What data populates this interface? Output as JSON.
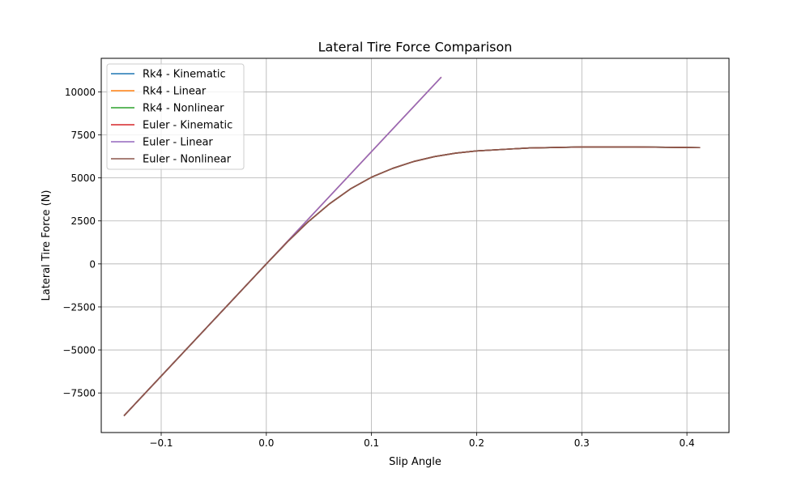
{
  "chart_data": {
    "type": "line",
    "title": "Lateral Tire Force Comparison",
    "xlabel": "Slip Angle",
    "ylabel": "Lateral Tire Force (N)",
    "xlim": [
      -0.157,
      0.44
    ],
    "ylim": [
      -9800,
      11950
    ],
    "xticks": [
      -0.1,
      0.0,
      0.1,
      0.2,
      0.3,
      0.4
    ],
    "xtick_labels": [
      "−0.1",
      "0.0",
      "0.1",
      "0.2",
      "0.3",
      "0.4"
    ],
    "yticks": [
      -7500,
      -5000,
      -2500,
      0,
      2500,
      5000,
      7500,
      10000
    ],
    "ytick_labels": [
      "−7500",
      "−5000",
      "−2500",
      "0",
      "2500",
      "5000",
      "7500",
      "10000"
    ],
    "grid": true,
    "legend_position": "top-left",
    "series": [
      {
        "name": "Rk4 - Kinematic",
        "color": "#1f77b4",
        "x": [
          -0.135,
          -0.1,
          -0.05,
          0.0,
          0.02,
          0.04,
          0.06,
          0.08,
          0.1,
          0.12,
          0.14,
          0.16,
          0.18,
          0.2,
          0.25,
          0.3,
          0.35,
          0.4,
          0.412
        ],
        "y": [
          -8800,
          -6520,
          -3260,
          0,
          1280,
          2460,
          3490,
          4360,
          5040,
          5550,
          5950,
          6240,
          6440,
          6570,
          6740,
          6800,
          6800,
          6770,
          6760
        ]
      },
      {
        "name": "Rk4 - Linear",
        "color": "#ff7f0e",
        "x": [
          -0.135,
          0.166
        ],
        "y": [
          -8800,
          10830
        ]
      },
      {
        "name": "Rk4 - Nonlinear",
        "color": "#2ca02c",
        "x": [
          -0.135,
          -0.1,
          -0.05,
          0.0,
          0.02,
          0.04,
          0.06,
          0.08,
          0.1,
          0.12,
          0.14,
          0.16,
          0.18,
          0.2,
          0.25,
          0.3,
          0.35,
          0.4,
          0.412
        ],
        "y": [
          -8800,
          -6520,
          -3260,
          0,
          1280,
          2460,
          3490,
          4360,
          5040,
          5550,
          5950,
          6240,
          6440,
          6570,
          6740,
          6800,
          6800,
          6770,
          6760
        ]
      },
      {
        "name": "Euler - Kinematic",
        "color": "#d62728",
        "x": [
          -0.135,
          -0.1,
          -0.05,
          0.0,
          0.02,
          0.04,
          0.06,
          0.08,
          0.1,
          0.12,
          0.14,
          0.16,
          0.18,
          0.2,
          0.25,
          0.3,
          0.35,
          0.4,
          0.412
        ],
        "y": [
          -8800,
          -6520,
          -3260,
          0,
          1280,
          2460,
          3490,
          4360,
          5040,
          5550,
          5950,
          6240,
          6440,
          6570,
          6740,
          6800,
          6800,
          6770,
          6760
        ]
      },
      {
        "name": "Euler - Linear",
        "color": "#9467bd",
        "x": [
          -0.135,
          0.166
        ],
        "y": [
          -8800,
          10830
        ]
      },
      {
        "name": "Euler - Nonlinear",
        "color": "#8c564b",
        "x": [
          -0.135,
          -0.1,
          -0.05,
          0.0,
          0.02,
          0.04,
          0.06,
          0.08,
          0.1,
          0.12,
          0.14,
          0.16,
          0.18,
          0.2,
          0.25,
          0.3,
          0.35,
          0.4,
          0.412
        ],
        "y": [
          -8800,
          -6520,
          -3260,
          0,
          1280,
          2460,
          3490,
          4360,
          5040,
          5550,
          5950,
          6240,
          6440,
          6570,
          6740,
          6800,
          6800,
          6770,
          6760
        ]
      }
    ]
  }
}
